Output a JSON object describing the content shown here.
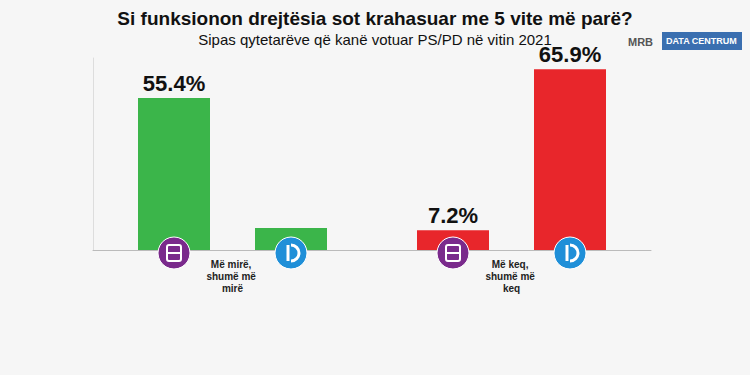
{
  "chart_data": {
    "type": "bar",
    "title": "Si funksionon drejtësia sot krahasuar me 5 vite më parë?",
    "subtitle": "Sipas qytetarëve që kanë votuar PS/PD në vitin 2021",
    "annotations": [
      "MRB",
      "DATA CENTRUM"
    ],
    "categories": [
      "Më mirë, shumë më mirë",
      "Më keq, shumë më keq"
    ],
    "series": [
      {
        "colors": [
          "#3bb54a",
          "#e8262b"
        ],
        "values": [
          55.4,
          7.2
        ],
        "value_labels": [
          "55.4%",
          "7.2%"
        ]
      },
      {
        "colors": [
          "#3bb54a",
          "#e8262b"
        ],
        "values": [
          8.0,
          65.9
        ],
        "value_labels": [
          null,
          "65.9%"
        ]
      }
    ],
    "ylim": [
      0,
      70
    ],
    "grid": false,
    "tick_labels": false,
    "data_labels": true
  }
}
